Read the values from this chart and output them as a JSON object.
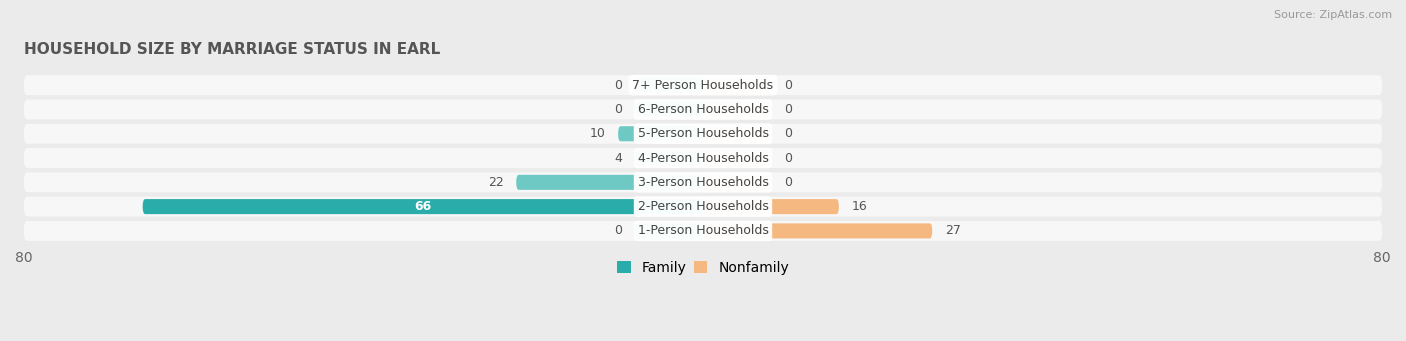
{
  "title": "HOUSEHOLD SIZE BY MARRIAGE STATUS IN EARL",
  "source": "Source: ZipAtlas.com",
  "categories": [
    "7+ Person Households",
    "6-Person Households",
    "5-Person Households",
    "4-Person Households",
    "3-Person Households",
    "2-Person Households",
    "1-Person Households"
  ],
  "family_values": [
    0,
    0,
    10,
    4,
    22,
    66,
    0
  ],
  "nonfamily_values": [
    0,
    0,
    0,
    0,
    0,
    16,
    27
  ],
  "family_color_light": "#6EC9C4",
  "family_color_dark": "#2AADAA",
  "nonfamily_color": "#F5B880",
  "nonfamily_color_light": "#F5C89A",
  "xlim": [
    -80,
    80
  ],
  "bar_height": 0.62,
  "bg_color": "#ebebeb",
  "row_bg_color": "#f7f7f7",
  "title_fontsize": 11,
  "label_fontsize": 9,
  "tick_fontsize": 10,
  "legend_fontsize": 10,
  "min_stub": 8
}
